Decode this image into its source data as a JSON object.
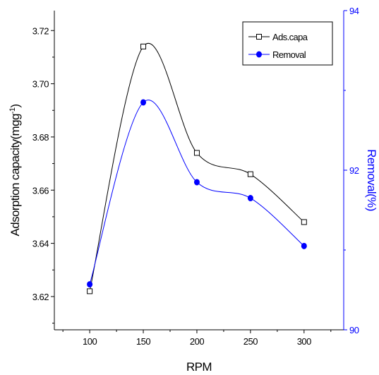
{
  "chart_data": {
    "type": "line",
    "xlabel": "RPM",
    "ylabel_left": "Adsorption capacity(mgg",
    "ylabel_left_sup": "-1",
    "ylabel_left_end": ")",
    "ylabel_right": "Removal(%)",
    "categories": [
      100,
      150,
      200,
      250,
      300
    ],
    "x_ticks": [
      "100",
      "150",
      "200",
      "250",
      "300"
    ],
    "xlim": [
      67,
      337
    ],
    "ylim_left": [
      3.6075,
      3.7275
    ],
    "ylim_right": [
      90,
      94
    ],
    "y_ticks_left": [
      "3.62",
      "3.64",
      "3.66",
      "3.68",
      "3.70",
      "3.72"
    ],
    "y_ticks_right": [
      "90",
      "92",
      "94"
    ],
    "series": [
      {
        "name": "Ads.capa",
        "axis": "left",
        "color": "#000000",
        "marker": "open-square",
        "values": [
          3.622,
          3.714,
          3.674,
          3.666,
          3.648
        ]
      },
      {
        "name": "Removal",
        "axis": "right",
        "color": "#0000ff",
        "marker": "filled-circle",
        "values": [
          90.57,
          92.85,
          91.85,
          91.65,
          91.05
        ]
      }
    ],
    "legend_position": "top-right",
    "grid": false
  }
}
